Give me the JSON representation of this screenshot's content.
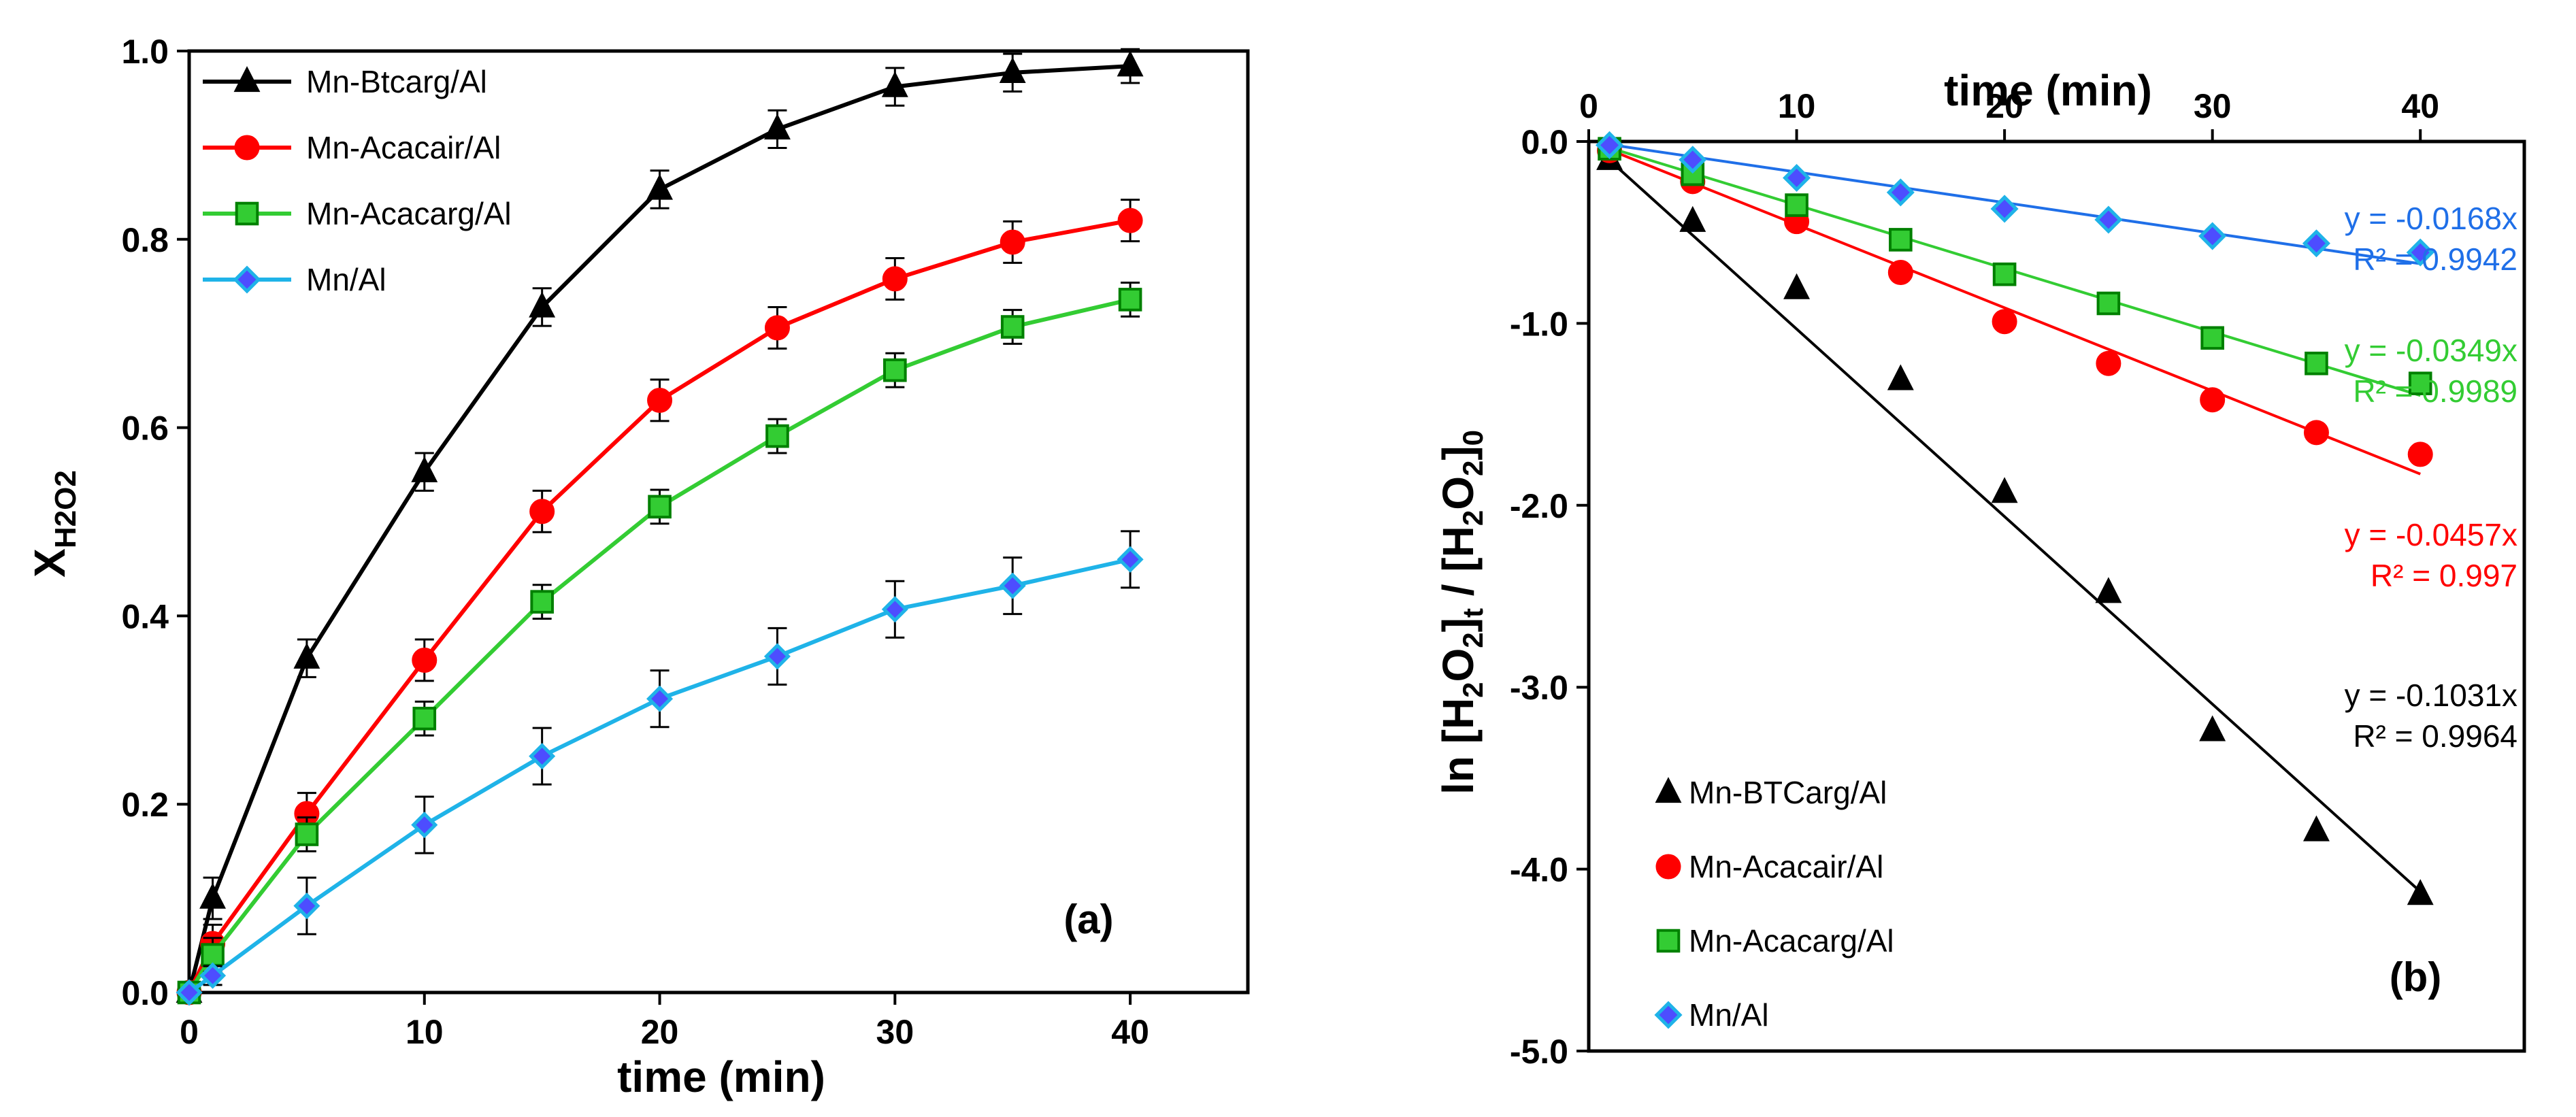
{
  "chart_data": [
    {
      "type": "line",
      "panel_label": "(a)",
      "xlabel": "time (min)",
      "ylabel_main": "X",
      "ylabel_sub": "H2O2",
      "xlim": [
        0,
        45
      ],
      "ylim": [
        0,
        1.0
      ],
      "x_ticks": [
        0,
        10,
        20,
        30,
        40
      ],
      "x_tick_labels": [
        "0",
        "10",
        "20",
        "30",
        "40"
      ],
      "y_ticks": [
        0,
        0.2,
        0.4,
        0.6,
        0.8,
        1.0
      ],
      "y_tick_labels": [
        "0.0",
        "0.2",
        "0.4",
        "0.6",
        "0.8",
        "1.0"
      ],
      "legend_position": "top-left",
      "x": [
        0,
        1,
        5,
        10,
        15,
        20,
        25,
        30,
        35,
        40
      ],
      "series": [
        {
          "name": "Mn-Btcarg/Al",
          "color": "#000000",
          "marker": "triangle",
          "marker_fill": "#000000",
          "marker_stroke": "#000000",
          "values": [
            0,
            0.1,
            0.355,
            0.553,
            0.728,
            0.853,
            0.917,
            0.962,
            0.977,
            0.984
          ],
          "errors": [
            0,
            0.022,
            0.02,
            0.02,
            0.02,
            0.02,
            0.02,
            0.02,
            0.02,
            0.018
          ]
        },
        {
          "name": "Mn-Acacair/Al",
          "color": "#ff0000",
          "marker": "circle",
          "marker_fill": "#ff0000",
          "marker_stroke": "#ff0000",
          "values": [
            0,
            0.052,
            0.19,
            0.353,
            0.511,
            0.629,
            0.706,
            0.758,
            0.797,
            0.82
          ],
          "errors": [
            0,
            0.02,
            0.022,
            0.022,
            0.022,
            0.022,
            0.022,
            0.022,
            0.022,
            0.022
          ]
        },
        {
          "name": "Mn-Acacarg/Al",
          "color": "#33cc33",
          "marker": "square",
          "marker_fill": "#33cc33",
          "marker_stroke": "#008000",
          "values": [
            0,
            0.04,
            0.168,
            0.291,
            0.415,
            0.516,
            0.591,
            0.661,
            0.707,
            0.736
          ],
          "errors": [
            0,
            0.018,
            0.018,
            0.018,
            0.018,
            0.018,
            0.018,
            0.018,
            0.018,
            0.018
          ]
        },
        {
          "name": "Mn/Al",
          "color": "#1fb3e8",
          "marker": "diamond",
          "marker_fill": "#4d4dff",
          "marker_stroke": "#1fb3e8",
          "values": [
            0,
            0.018,
            0.092,
            0.178,
            0.251,
            0.312,
            0.357,
            0.407,
            0.432,
            0.46
          ],
          "errors": [
            0,
            0.01,
            0.03,
            0.03,
            0.03,
            0.03,
            0.03,
            0.03,
            0.03,
            0.03
          ]
        }
      ]
    },
    {
      "type": "scatter",
      "panel_label": "(b)",
      "xlabel": "time (min)",
      "ylabel": "ln [H2O2]t / [H2O2]0",
      "xlim": [
        0,
        45
      ],
      "ylim": [
        -5.0,
        0.0
      ],
      "x_ticks": [
        0,
        10,
        20,
        30,
        40
      ],
      "x_tick_labels": [
        "0",
        "10",
        "20",
        "30",
        "40"
      ],
      "y_ticks": [
        0,
        -1,
        -2,
        -3,
        -4,
        -5
      ],
      "y_tick_labels": [
        "0.0",
        "-1.0",
        "-2.0",
        "-3.0",
        "-4.0",
        "-5.0"
      ],
      "legend_position": "bottom-left",
      "x": [
        1,
        5,
        10,
        15,
        20,
        25,
        30,
        35,
        40
      ],
      "series": [
        {
          "name": "Mn-BTCarg/Al",
          "color": "#000000",
          "marker": "triangle",
          "marker_fill": "#000000",
          "marker_stroke": "#000000",
          "values": [
            -0.1,
            -0.44,
            -0.81,
            -1.31,
            -1.93,
            -2.48,
            -3.24,
            -3.79,
            -4.14
          ],
          "slope": -0.1031,
          "fit_eq": "y = -0.1031x",
          "fit_r2": "R² = 0.9964"
        },
        {
          "name": "Mn-Acacair/Al",
          "color": "#ff0000",
          "marker": "circle",
          "marker_fill": "#ff0000",
          "marker_stroke": "#ff0000",
          "values": [
            -0.05,
            -0.22,
            -0.44,
            -0.72,
            -0.99,
            -1.22,
            -1.42,
            -1.6,
            -1.72
          ],
          "slope": -0.0457,
          "fit_eq": "y = -0.0457x",
          "fit_r2": "R² = 0.997"
        },
        {
          "name": "Mn-Acacarg/Al",
          "color": "#33cc33",
          "marker": "square",
          "marker_fill": "#33cc33",
          "marker_stroke": "#008000",
          "values": [
            -0.04,
            -0.18,
            -0.35,
            -0.54,
            -0.73,
            -0.89,
            -1.08,
            -1.22,
            -1.33
          ],
          "slope": -0.0349,
          "fit_eq": "y = -0.0349x",
          "fit_r2": "R² = 0.9989"
        },
        {
          "name": "Mn/Al",
          "color": "#1f6fe8",
          "marker": "diamond",
          "marker_fill": "#4d4dff",
          "marker_stroke": "#1fb3e8",
          "values": [
            -0.02,
            -0.1,
            -0.2,
            -0.28,
            -0.37,
            -0.43,
            -0.52,
            -0.56,
            -0.61
          ],
          "slope": -0.0168,
          "fit_eq": "y = -0.0168x",
          "fit_r2": "R² = 0.9942"
        }
      ]
    }
  ]
}
